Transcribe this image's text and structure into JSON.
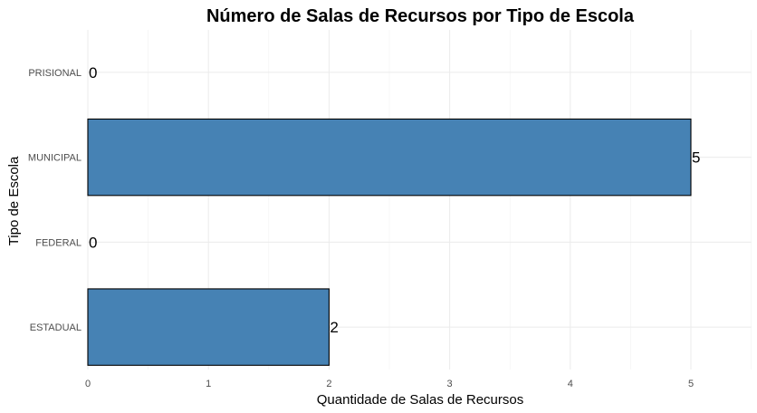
{
  "chart_data": {
    "type": "bar",
    "orientation": "horizontal",
    "title": "Número de Salas de Recursos por Tipo de Escola",
    "xlabel": "Quantidade de Salas de Recursos",
    "ylabel": "Tipo de Escola",
    "categories": [
      "ESTADUAL",
      "FEDERAL",
      "MUNICIPAL",
      "PRISIONAL"
    ],
    "values": [
      2,
      0,
      5,
      0
    ],
    "data_labels": [
      "2",
      "0",
      "5",
      "0"
    ],
    "xlim": [
      0,
      5.5
    ],
    "x_ticks": [
      0,
      1,
      2,
      3,
      4,
      5
    ],
    "x_tick_labels": [
      "0",
      "1",
      "2",
      "3",
      "4",
      "5"
    ],
    "bar_color": "#4682B4",
    "bar_outline_color": "#000000",
    "grid": true,
    "legend": "none"
  }
}
